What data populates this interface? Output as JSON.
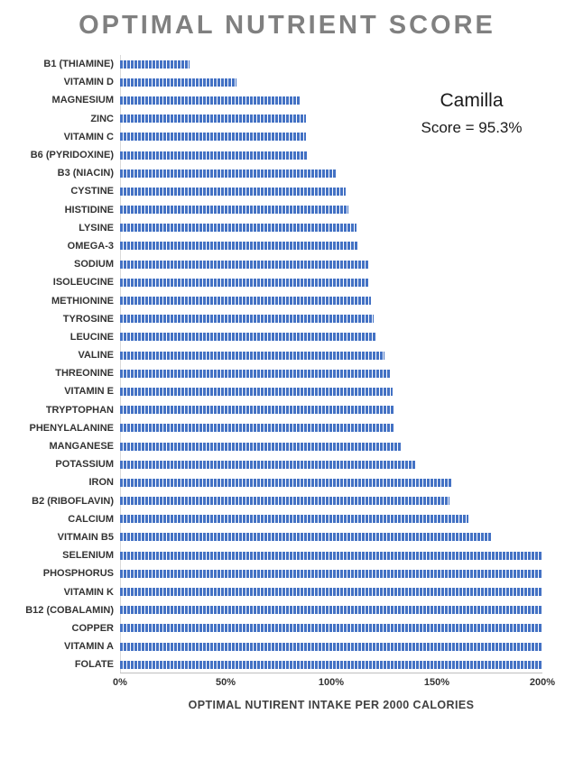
{
  "chart_data": {
    "type": "bar",
    "orientation": "horizontal",
    "title": "OPTIMAL NUTRIENT SCORE",
    "xlabel": "OPTIMAL NUTIRENT INTAKE PER 2000 CALORIES",
    "ylabel": "",
    "xlim": [
      0,
      200
    ],
    "x_ticks": [
      "0%",
      "50%",
      "100%",
      "150%",
      "200%"
    ],
    "grid": false,
    "bar_color": "#4472C4",
    "title_color": "#808080",
    "categories": [
      "B1 (THIAMINE)",
      "VITAMIN D",
      "MAGNESIUM",
      "ZINC",
      "VITAMIN C",
      "B6 (PYRIDOXINE)",
      "B3 (NIACIN)",
      "CYSTINE",
      "HISTIDINE",
      "LYSINE",
      "OMEGA-3",
      "SODIUM",
      "ISOLEUCINE",
      "METHIONINE",
      "TYROSINE",
      "LEUCINE",
      "VALINE",
      "THREONINE",
      "VITAMIN E",
      "TRYPTOPHAN",
      "PHENYLALANINE",
      "MANGANESE",
      "POTASSIUM",
      "IRON",
      "B2 (RIBOFLAVIN)",
      "CALCIUM",
      "VITMAIN B5",
      "SELENIUM",
      "PHOSPHORUS",
      "VITAMIN K",
      "B12 (COBALAMIN)",
      "COPPER",
      "VITAMIN A",
      "FOLATE"
    ],
    "values": [
      33,
      55,
      85,
      88,
      88,
      89,
      102,
      107,
      108,
      112,
      113,
      118,
      118,
      119,
      120,
      121,
      125,
      128,
      129,
      130,
      130,
      133,
      140,
      157,
      156,
      165,
      176,
      200,
      200,
      200,
      200,
      200,
      200,
      200
    ],
    "annotations": [
      "Camilla",
      "Score = 95.3%"
    ]
  }
}
